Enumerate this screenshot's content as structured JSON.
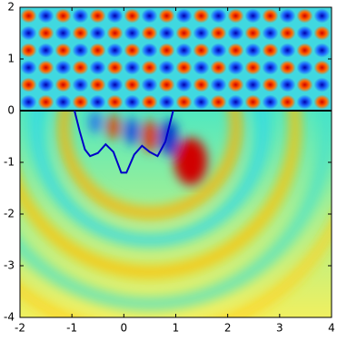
{
  "chart_data": {
    "type": "line",
    "xlim": [
      -2,
      4
    ],
    "ylim": [
      -4,
      2
    ],
    "xticks": [
      -2,
      -1,
      0,
      1,
      2,
      3,
      4
    ],
    "yticks": [
      -4,
      -3,
      -2,
      -1,
      0,
      1,
      2
    ],
    "series": [
      {
        "color": "#000000",
        "x": [
          -2,
          4
        ],
        "values": [
          0,
          0
        ]
      },
      {
        "color": "#0000c8",
        "x": [
          -0.95,
          -0.85,
          -0.75,
          -0.65,
          -0.5,
          -0.35,
          -0.2,
          -0.05,
          0.05,
          0.2,
          0.35,
          0.5,
          0.65,
          0.8,
          0.9,
          0.95
        ],
        "values": [
          0,
          -0.4,
          -0.75,
          -0.88,
          -0.82,
          -0.65,
          -0.8,
          -1.2,
          -1.2,
          -0.85,
          -0.68,
          -0.8,
          -0.88,
          -0.6,
          -0.2,
          0
        ]
      }
    ]
  }
}
